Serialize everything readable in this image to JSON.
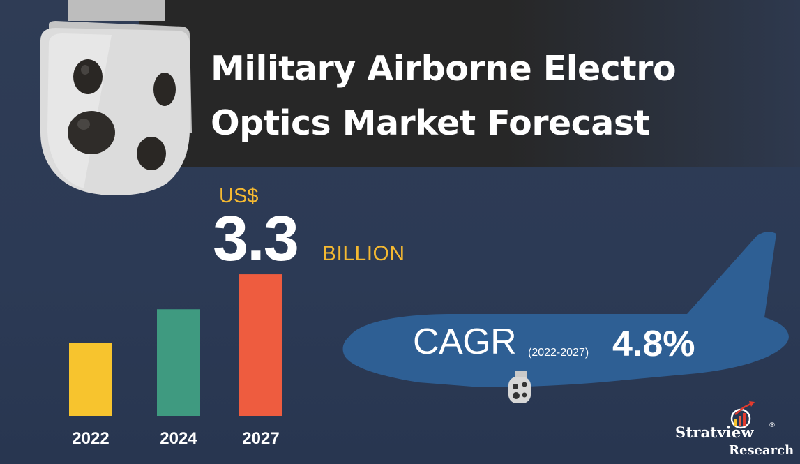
{
  "title": {
    "line1": "Military Airborne Electro",
    "line2": "Optics Market Forecast"
  },
  "market_value": {
    "currency": "US$",
    "value": "3.3",
    "scale": "BILLION"
  },
  "cagr": {
    "label": "CAGR",
    "period": "(2022-2027)",
    "value": "4.8%"
  },
  "brand": {
    "name": "Stratview",
    "registered": "®",
    "subtitle": "Research"
  },
  "icons": [
    "camera-gimbal-icon",
    "airplane-icon",
    "small-gimbal-icon",
    "stratview-logo-icon"
  ],
  "colors": {
    "background": "#2f3c55",
    "title_band": "#272727",
    "accent_text": "#f5b931",
    "airplane": "#2e5f94"
  },
  "chart_data": {
    "type": "bar",
    "categories": [
      "2022",
      "2024",
      "2027"
    ],
    "values": [
      0.46,
      0.67,
      0.89
    ],
    "value_scale": "relative bar height (unlabeled axis)",
    "colors": [
      "#f7c42e",
      "#3f9a80",
      "#ee5c3f"
    ],
    "title": "",
    "xlabel": "",
    "ylabel": "",
    "ylim": [
      0,
      1
    ],
    "grid": false,
    "legend": "none"
  }
}
